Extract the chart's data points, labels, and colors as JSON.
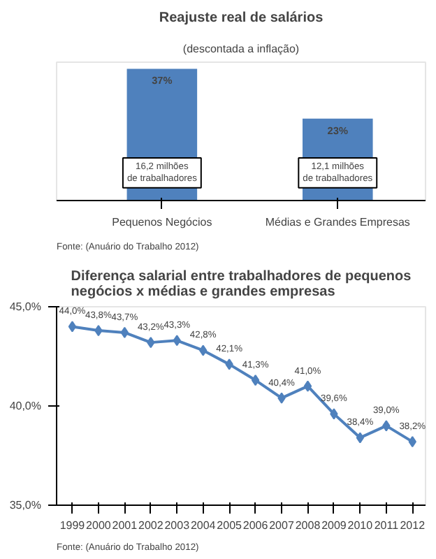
{
  "chart_data": [
    {
      "type": "bar",
      "title": "Reajuste real de salários",
      "subtitle": "(descontada a inflação)",
      "categories": [
        "Pequenos Negócios",
        "Médias e Grandes Empresas"
      ],
      "values": [
        37,
        23
      ],
      "color": "#4f81bd",
      "data_labels": true,
      "value_labels": [
        "37%",
        "23%"
      ],
      "tick_labels": "x",
      "grid": false,
      "annotations": [
        "16,2 milhões de trabalhadores",
        "12,1 milhões de trabalhadores",
        "Fonte: (Anuário do Trabalho 2012)"
      ]
    },
    {
      "type": "line",
      "title": "Diferença salarial entre trabalhadores de pequenos negócios x médias e grandes empresas",
      "categories": [
        "1999",
        "2000",
        "2001",
        "2002",
        "2003",
        "2004",
        "2005",
        "2006",
        "2007",
        "2008",
        "2009",
        "2010",
        "2011",
        "2012"
      ],
      "series": [
        {
          "color": "#4f81bd",
          "values": [
            44.0,
            43.8,
            43.7,
            43.2,
            43.3,
            42.8,
            42.1,
            41.3,
            40.4,
            41.0,
            39.6,
            38.4,
            39.0,
            38.2
          ]
        }
      ],
      "value_labels": [
        "44,0%",
        "43,8%",
        "43,7%",
        "43,2%",
        "43,3%",
        "42,8%",
        "42,1%",
        "41,3%",
        "40,4%",
        "41,0%",
        "39,6%",
        "38,4%",
        "39,0%",
        "38,2%"
      ],
      "ylim": [
        35,
        45
      ],
      "yticks": [
        {
          "value": 35,
          "label": "35,0%"
        },
        {
          "value": 40,
          "label": "40,0%"
        },
        {
          "value": 45,
          "label": "45,0%"
        }
      ],
      "marker": "diamond",
      "line_style": "solid",
      "grid": false,
      "annotations": [
        "Fonte: (Anuário do Trabalho 2012)"
      ]
    }
  ]
}
